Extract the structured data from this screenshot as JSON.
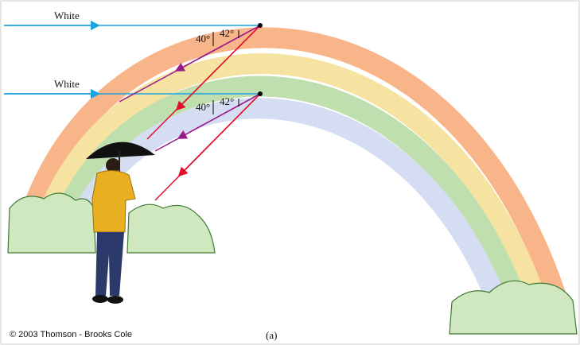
{
  "rays": [
    {
      "label": "White",
      "deviation_angle": "40°",
      "reflection_angle": "42°"
    },
    {
      "label": "White",
      "deviation_angle": "40°",
      "reflection_angle": "42°"
    }
  ],
  "footer": {
    "copyright": "© 2003 Thomson - Brooks Cole",
    "panel": "(a)"
  }
}
